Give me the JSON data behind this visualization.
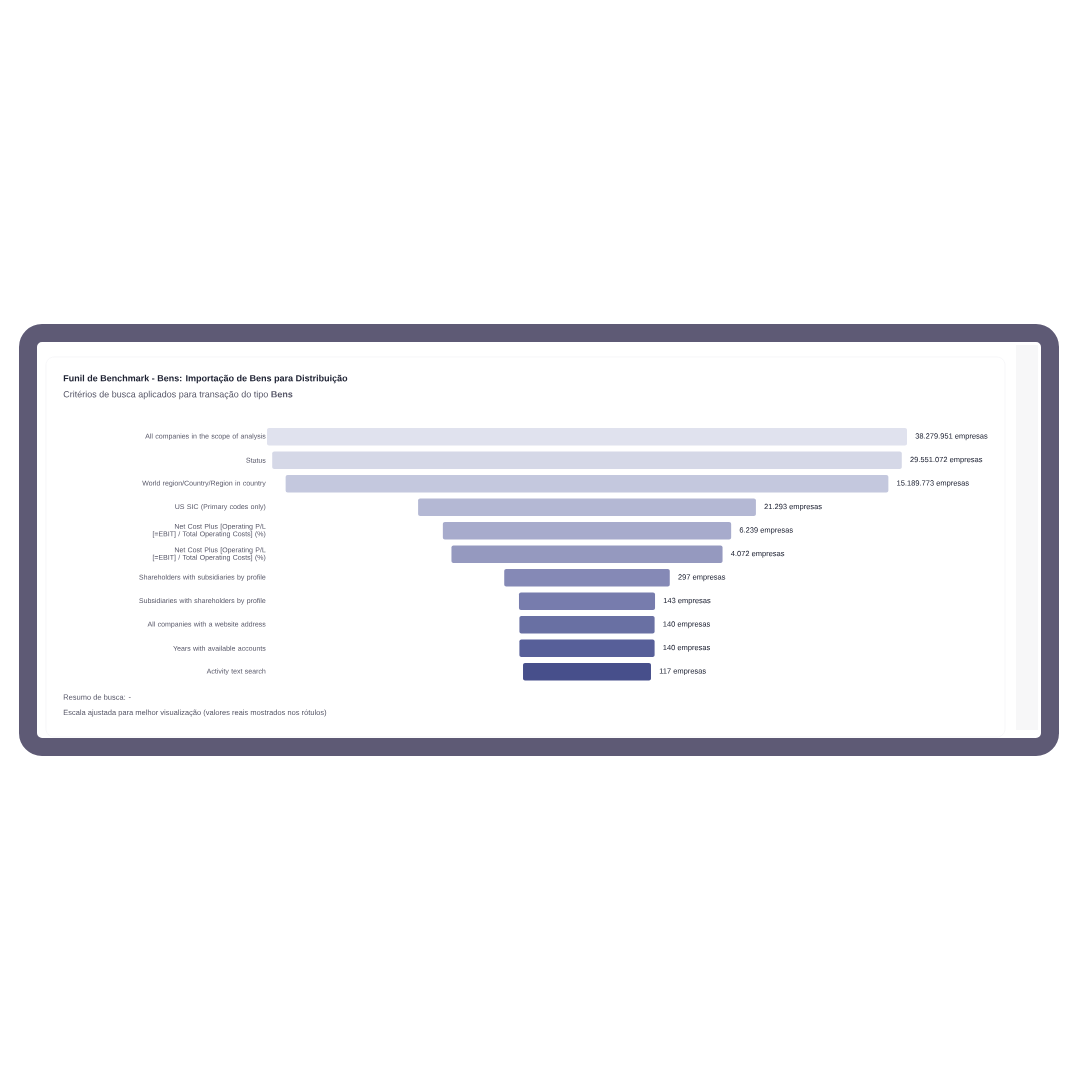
{
  "chart_data": {
    "type": "other",
    "title": "Funil de Benchmark - Bens: Importação de Bens para Distribuição",
    "subtitle": "Critérios de busca aplicados para transação do tipo **Bens**",
    "categories": [
      "All companies in the scope of analysis",
      "Status",
      "World region/Country/Region in country",
      "US SIC (Primary codes only)",
      "Net Cost Plus [Operating P/L [=EBIT] / Total Operating Costs] (%)",
      "Net Cost Plus [Operating P/L [=EBIT] / Total Operating Costs] (%)",
      "Shareholders with subsidiaries by profile",
      "Subsidiaries with shareholders by profile",
      "All companies with a website address",
      "Years with available accounts",
      "Activity text search"
    ],
    "values": [
      38279951,
      29551072,
      15189773,
      21293,
      6239,
      4072,
      297,
      143,
      140,
      140,
      117
    ],
    "value_labels": [
      "38.279.951 empresas",
      "29.551.072 empresas",
      "15.189.773 empresas",
      "21.293 empresas",
      "6.239 empresas",
      "4.072 empresas",
      "297 empresas",
      "143 empresas",
      "140 empresas",
      "140 empresas",
      "117 empresas"
    ],
    "colors": [
      "#e0e2ee",
      "#d5d8e7",
      "#c4c8de",
      "#b4b8d4",
      "#a7abcc",
      "#9599bf",
      "#8589b6",
      "#777cad",
      "#6970a3",
      "#575f99",
      "#474f8b"
    ],
    "annotations": [
      "Resumo de busca: -",
      "Escala ajustada para melhor visualização (valores reais mostrados nos rótulos)"
    ]
  }
}
